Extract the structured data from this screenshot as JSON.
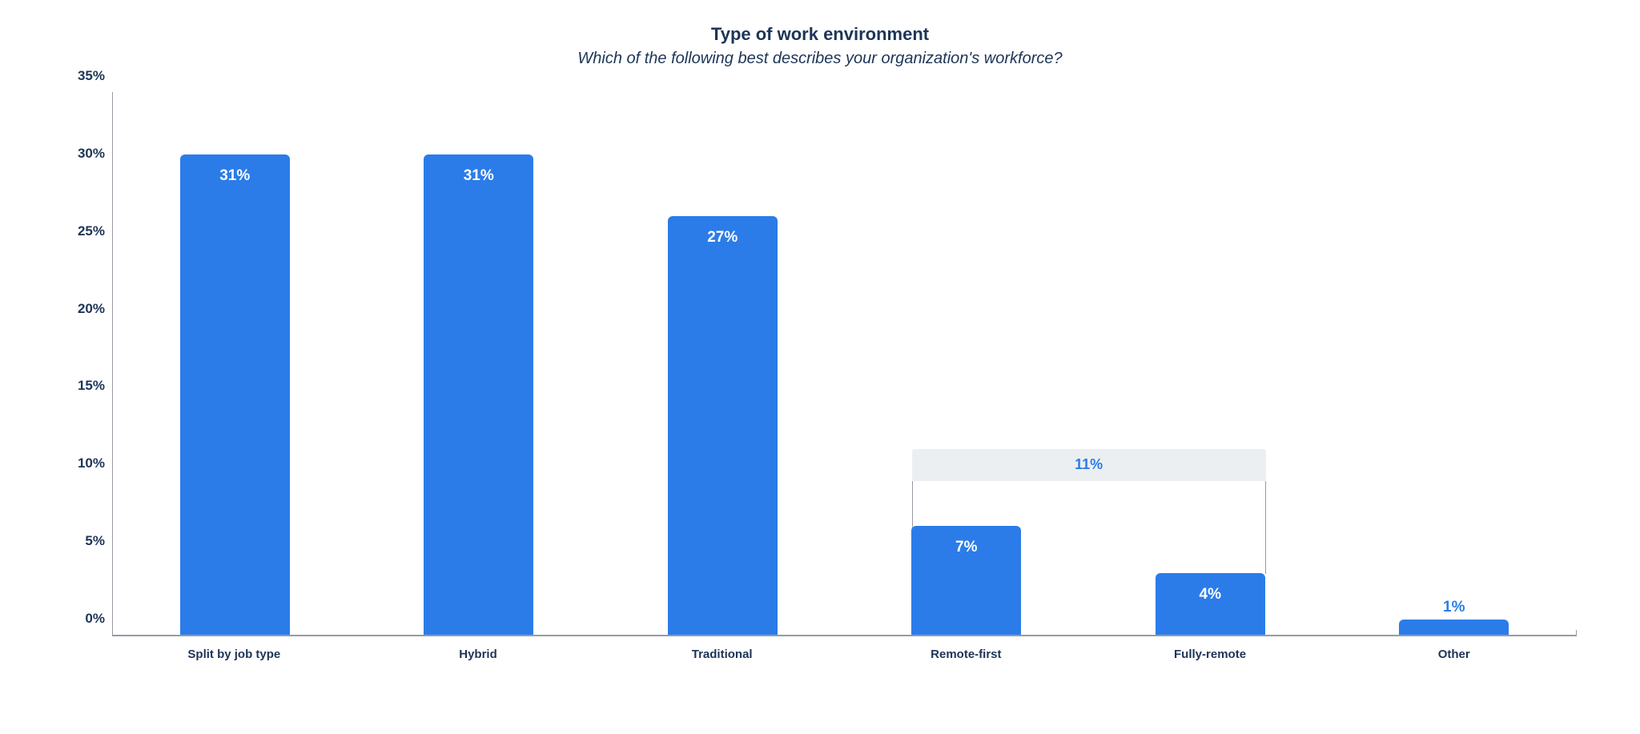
{
  "chart": {
    "type": "bar",
    "title": "Type of work environment",
    "subtitle": "Which of the following best describes your organization's workforce?",
    "title_fontsize": 22,
    "title_color": "#1d3557",
    "subtitle_fontsize": 20,
    "subtitle_color": "#1d3557",
    "categories": [
      "Split by job type",
      "Hybrid",
      "Traditional",
      "Remote-first",
      "Fully-remote",
      "Other"
    ],
    "values": [
      31,
      31,
      27,
      7,
      4,
      1
    ],
    "value_labels": [
      "31%",
      "31%",
      "27%",
      "7%",
      "4%",
      "1%"
    ],
    "label_positions": [
      "inside",
      "inside",
      "inside",
      "inside",
      "inside",
      "outside"
    ],
    "bar_color": "#2b7ce9",
    "bar_width_pct": 45,
    "ylim": [
      0,
      35
    ],
    "ytick_step": 5,
    "yticks": [
      "0%",
      "5%",
      "10%",
      "15%",
      "20%",
      "25%",
      "30%",
      "35%"
    ],
    "axis_color": "#989ba3",
    "axis_label_color": "#1d3557",
    "axis_label_fontsize": 17,
    "xlabel_fontsize": 15,
    "bar_label_fontsize": 19,
    "bar_label_color_inside": "#ffffff",
    "bar_label_color_outside": "#2b7ce9",
    "background_color": "transparent",
    "annotation": {
      "text": "11%",
      "text_color": "#2b7ce9",
      "bg_color": "#eceff1",
      "fontsize": 18,
      "span_from_index": 3,
      "span_to_index": 4,
      "at_value": 10,
      "line_color": "#989ba3"
    }
  }
}
